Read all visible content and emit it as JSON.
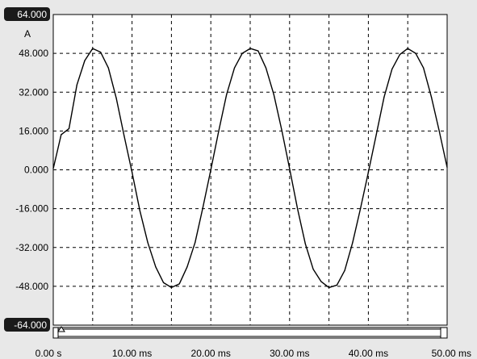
{
  "chart_data": {
    "type": "line",
    "title": "",
    "xlabel": "",
    "ylabel": "A",
    "xlim": [
      0,
      50
    ],
    "ylim": [
      -64,
      64
    ],
    "grid": true,
    "y_ticks": [
      {
        "value": 64,
        "label": "64.000",
        "badge": true
      },
      {
        "value": 48,
        "label": "48.000"
      },
      {
        "value": 32,
        "label": "32.000"
      },
      {
        "value": 16,
        "label": "16.000"
      },
      {
        "value": 0,
        "label": "0.000"
      },
      {
        "value": -16,
        "label": "-16.000"
      },
      {
        "value": -32,
        "label": "-32.000"
      },
      {
        "value": -48,
        "label": "-48.000"
      },
      {
        "value": -64,
        "label": "-64.000",
        "badge": true
      }
    ],
    "x_ticks": [
      {
        "value": 0,
        "label": "0.00 s"
      },
      {
        "value": 10,
        "label": "10.00 ms"
      },
      {
        "value": 20,
        "label": "20.00 ms"
      },
      {
        "value": 30,
        "label": "30.00 ms"
      },
      {
        "value": 40,
        "label": "40.00 ms"
      },
      {
        "value": 50,
        "label": "50.00 ms"
      }
    ],
    "series": [
      {
        "color": "#000000",
        "x": [
          0.0,
          1.0,
          2.0,
          3.0,
          4.0,
          5.0,
          6.0,
          7.0,
          8.0,
          9.0,
          10.0,
          11.0,
          12.0,
          13.0,
          14.0,
          15.0,
          16.0,
          17.0,
          18.0,
          19.0,
          20.0,
          21.0,
          22.0,
          23.0,
          24.0,
          25.0,
          26.0,
          27.0,
          28.0,
          29.0,
          30.0,
          31.0,
          32.0,
          33.0,
          34.0,
          35.0,
          36.0,
          37.0,
          38.0,
          39.0,
          40.0,
          41.0,
          42.0,
          43.0,
          44.0,
          45.0,
          46.0,
          47.0,
          48.0,
          49.0,
          50.0
        ],
        "y": [
          0.5,
          14.5,
          17.0,
          35.0,
          45.0,
          50.0,
          48.5,
          42.0,
          29.5,
          14.0,
          -1.0,
          -17.0,
          -30.0,
          -40.0,
          -46.5,
          -48.5,
          -47.0,
          -40.0,
          -30.0,
          -15.5,
          0.0,
          16.0,
          31.0,
          42.0,
          48.0,
          50.0,
          49.0,
          42.0,
          31.0,
          16.5,
          0.5,
          -16.0,
          -30.5,
          -41.0,
          -46.0,
          -48.5,
          -47.5,
          -41.5,
          -30.0,
          -16.0,
          -1.0,
          14.5,
          30.0,
          41.5,
          47.5,
          50.0,
          48.0,
          42.0,
          30.0,
          16.0,
          1.0
        ]
      }
    ]
  }
}
